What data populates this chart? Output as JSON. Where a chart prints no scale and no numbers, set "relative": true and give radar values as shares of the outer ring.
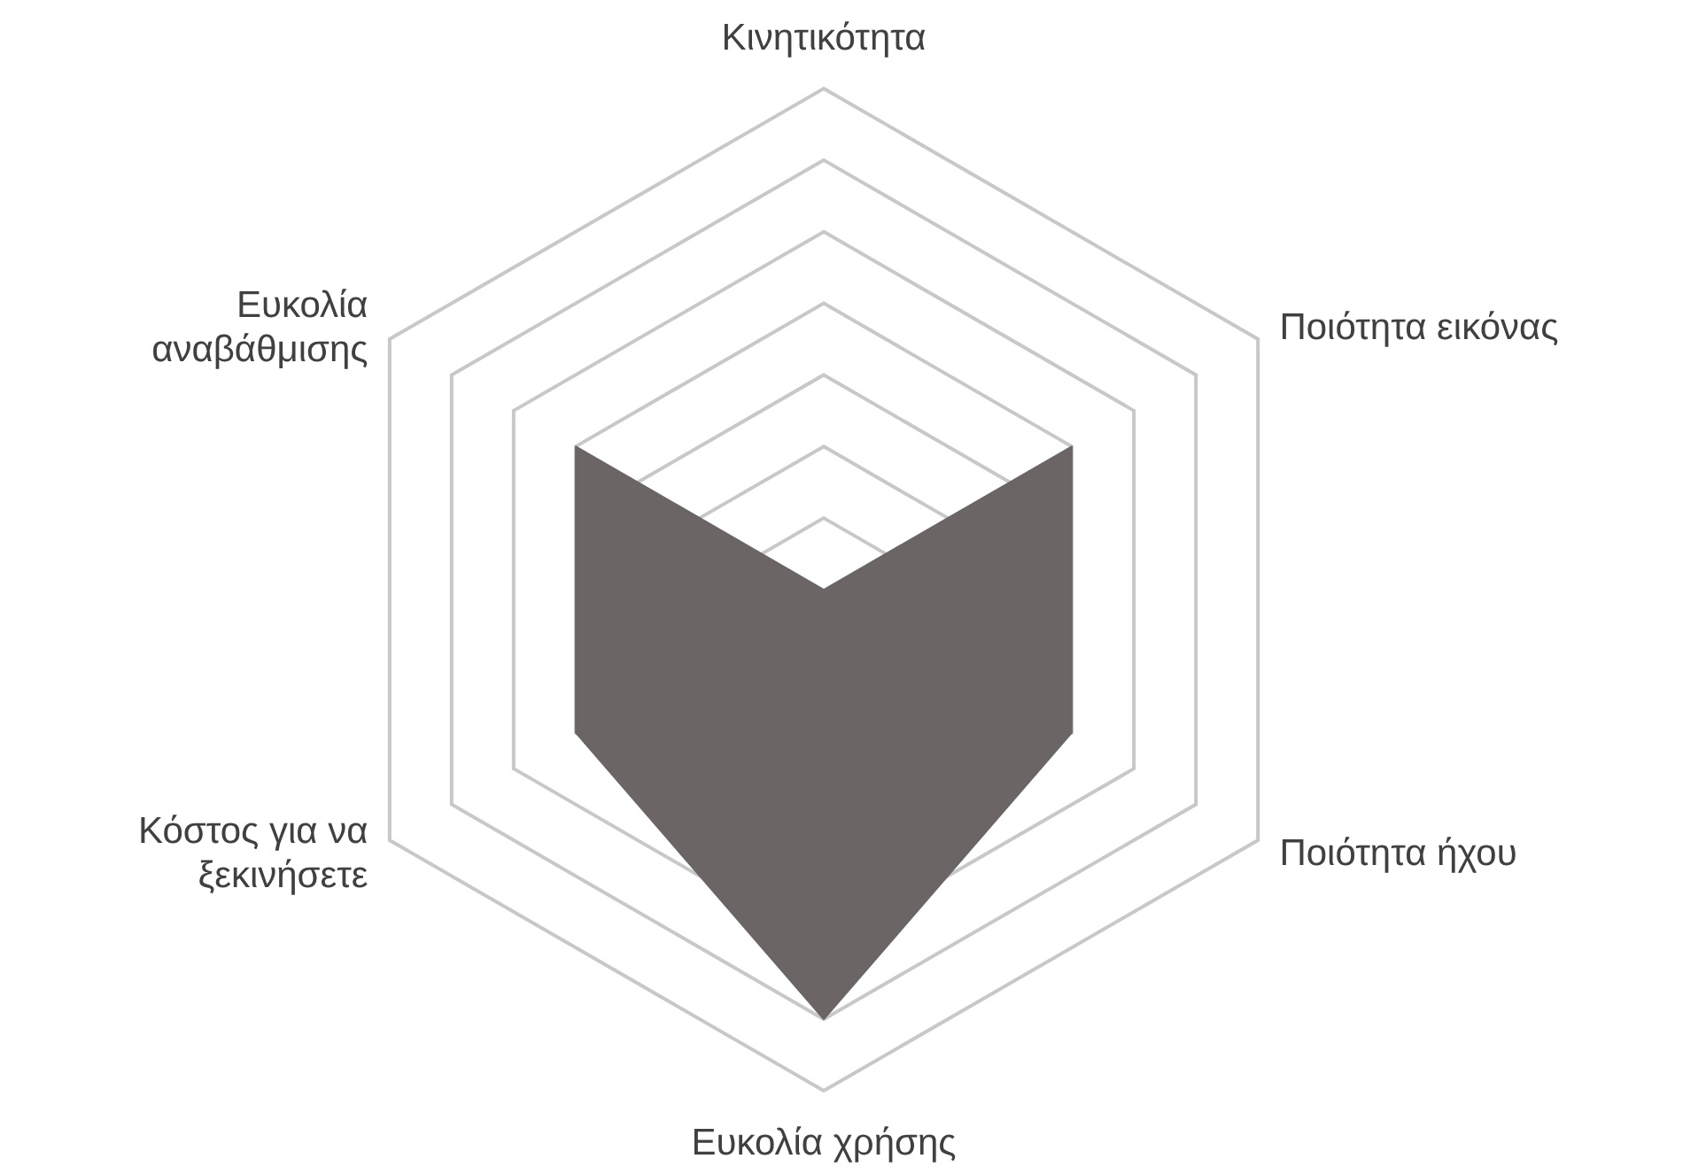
{
  "chart_data": {
    "type": "radar",
    "relative": true,
    "categories": [
      "Κινητικότητα",
      "Ποιότητα εικόνας",
      "Ποιότητα ήχου",
      "Ευκολία χρήσης",
      "Κόστος για να ξεκινήσετε",
      "Ευκολία αναβάθμισης"
    ],
    "series": [
      {
        "color": "#6b6565",
        "values": [
          0,
          0.571,
          0.571,
          0.857,
          0.571,
          0.571
        ]
      }
    ]
  }
}
